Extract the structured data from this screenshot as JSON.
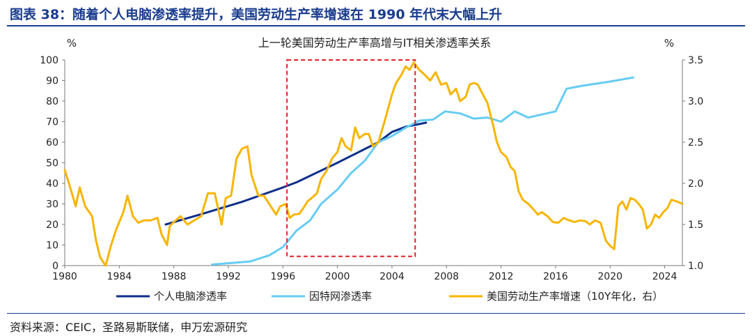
{
  "page": {
    "figure_title": "图表 38：随着个人电脑渗透率提升，美国劳动生产率增速在 1990 年代末大幅上升",
    "source": "资料来源：CEIC，圣路易斯联储，申万宏源研究"
  },
  "chart_data": {
    "type": "line",
    "title": "上一轮美国劳动生产率高增与IT相关渗透率关系",
    "left_unit": "%",
    "right_unit": "%",
    "x_range": [
      1980,
      2025.3
    ],
    "x_ticks": [
      1980,
      1984,
      1988,
      1992,
      1996,
      2000,
      2004,
      2008,
      2012,
      2016,
      2020,
      2024
    ],
    "y_left_range": [
      0,
      100
    ],
    "y_left_ticks": [
      0,
      10,
      20,
      30,
      40,
      50,
      60,
      70,
      80,
      90,
      100
    ],
    "y_right_range": [
      1.0,
      3.5
    ],
    "y_right_ticks": [
      "1.0",
      "1.5",
      "2.0",
      "2.5",
      "3.0",
      "3.5"
    ],
    "highlight_box": {
      "x_from": 1996.3,
      "x_to": 2005.7,
      "y_from": 4.5,
      "y_to": 100
    },
    "series": [
      {
        "name": "个人电脑渗透率",
        "axis": "left",
        "color": "#0d2f8a",
        "points": [
          [
            1987.4,
            20
          ],
          [
            1990,
            25
          ],
          [
            1993,
            31
          ],
          [
            1996,
            38
          ],
          [
            1997,
            40.5
          ],
          [
            2000,
            50
          ],
          [
            2003,
            60
          ],
          [
            2004,
            65
          ],
          [
            2005,
            67.5
          ],
          [
            2006.5,
            69.5
          ]
        ]
      },
      {
        "name": "因特网渗透率",
        "axis": "left",
        "color": "#66ccf2",
        "points": [
          [
            1990.8,
            0.5
          ],
          [
            1993.6,
            2
          ],
          [
            1995,
            5
          ],
          [
            1996,
            9
          ],
          [
            1997,
            17
          ],
          [
            1998,
            22
          ],
          [
            1998.8,
            30
          ],
          [
            2000,
            37
          ],
          [
            2001,
            45
          ],
          [
            2002,
            51
          ],
          [
            2003,
            60
          ],
          [
            2004,
            63
          ],
          [
            2005,
            67
          ],
          [
            2006,
            70.5
          ],
          [
            2007,
            71
          ],
          [
            2007.9,
            75
          ],
          [
            2009,
            74
          ],
          [
            2010,
            71.5
          ],
          [
            2011,
            72
          ],
          [
            2012,
            70
          ],
          [
            2013,
            75
          ],
          [
            2014,
            72
          ],
          [
            2015,
            73.5
          ],
          [
            2016,
            75
          ],
          [
            2016.8,
            86
          ],
          [
            2018,
            87.5
          ],
          [
            2020,
            89.5
          ],
          [
            2021.7,
            91.5
          ]
        ]
      },
      {
        "name": "美国劳动生产率增速（10Y年化，右）",
        "axis": "right",
        "color": "#f7b500",
        "points": [
          [
            1980,
            2.16
          ],
          [
            1980.4,
            1.95
          ],
          [
            1980.8,
            1.72
          ],
          [
            1981.1,
            1.95
          ],
          [
            1981.5,
            1.72
          ],
          [
            1982,
            1.6
          ],
          [
            1982.3,
            1.3
          ],
          [
            1982.6,
            1.1
          ],
          [
            1983,
            1.0
          ],
          [
            1983.4,
            1.25
          ],
          [
            1983.8,
            1.45
          ],
          [
            1984.3,
            1.65
          ],
          [
            1984.6,
            1.85
          ],
          [
            1985,
            1.6
          ],
          [
            1985.4,
            1.52
          ],
          [
            1985.8,
            1.55
          ],
          [
            1986.3,
            1.55
          ],
          [
            1986.8,
            1.58
          ],
          [
            1987.1,
            1.38
          ],
          [
            1987.5,
            1.25
          ],
          [
            1987.7,
            1.48
          ],
          [
            1988,
            1.53
          ],
          [
            1988.5,
            1.6
          ],
          [
            1989,
            1.5
          ],
          [
            1989.5,
            1.55
          ],
          [
            1990,
            1.6
          ],
          [
            1990.5,
            1.88
          ],
          [
            1991,
            1.88
          ],
          [
            1991.5,
            1.5
          ],
          [
            1991.8,
            1.82
          ],
          [
            1992.2,
            1.85
          ],
          [
            1992.6,
            2.3
          ],
          [
            1993,
            2.42
          ],
          [
            1993.4,
            2.45
          ],
          [
            1993.7,
            2.1
          ],
          [
            1994.2,
            1.85
          ],
          [
            1994.6,
            1.85
          ],
          [
            1995,
            1.75
          ],
          [
            1995.5,
            1.62
          ],
          [
            1995.8,
            1.72
          ],
          [
            1996.2,
            1.75
          ],
          [
            1996.5,
            1.58
          ],
          [
            1996.8,
            1.62
          ],
          [
            1997.2,
            1.63
          ],
          [
            1997.5,
            1.7
          ],
          [
            1997.8,
            1.78
          ],
          [
            1998.1,
            1.82
          ],
          [
            1998.5,
            1.88
          ],
          [
            1998.8,
            2.05
          ],
          [
            1999.2,
            2.15
          ],
          [
            1999.6,
            2.3
          ],
          [
            2000,
            2.38
          ],
          [
            2000.3,
            2.55
          ],
          [
            2000.6,
            2.45
          ],
          [
            2001,
            2.4
          ],
          [
            2001.3,
            2.68
          ],
          [
            2001.6,
            2.55
          ],
          [
            2002,
            2.6
          ],
          [
            2002.3,
            2.6
          ],
          [
            2002.6,
            2.45
          ],
          [
            2003,
            2.5
          ],
          [
            2003.4,
            2.72
          ],
          [
            2003.7,
            2.9
          ],
          [
            2004,
            3.08
          ],
          [
            2004.3,
            3.22
          ],
          [
            2004.7,
            3.32
          ],
          [
            2005,
            3.42
          ],
          [
            2005.3,
            3.38
          ],
          [
            2005.6,
            3.47
          ],
          [
            2006,
            3.38
          ],
          [
            2006.4,
            3.32
          ],
          [
            2006.8,
            3.25
          ],
          [
            2007.2,
            3.35
          ],
          [
            2007.6,
            3.2
          ],
          [
            2008,
            3.22
          ],
          [
            2008.3,
            3.08
          ],
          [
            2008.7,
            3.15
          ],
          [
            2009,
            3.0
          ],
          [
            2009.4,
            3.05
          ],
          [
            2009.7,
            3.2
          ],
          [
            2010,
            3.22
          ],
          [
            2010.3,
            3.2
          ],
          [
            2010.7,
            3.07
          ],
          [
            2011,
            2.98
          ],
          [
            2011.4,
            2.72
          ],
          [
            2011.7,
            2.5
          ],
          [
            2012,
            2.38
          ],
          [
            2012.4,
            2.32
          ],
          [
            2012.7,
            2.2
          ],
          [
            2013,
            2.15
          ],
          [
            2013.3,
            1.9
          ],
          [
            2013.6,
            1.8
          ],
          [
            2014,
            1.75
          ],
          [
            2014.4,
            1.68
          ],
          [
            2014.7,
            1.62
          ],
          [
            2015,
            1.65
          ],
          [
            2015.4,
            1.6
          ],
          [
            2015.8,
            1.53
          ],
          [
            2016.2,
            1.52
          ],
          [
            2016.6,
            1.58
          ],
          [
            2017,
            1.55
          ],
          [
            2017.4,
            1.53
          ],
          [
            2017.8,
            1.55
          ],
          [
            2018.2,
            1.54
          ],
          [
            2018.5,
            1.5
          ],
          [
            2018.9,
            1.55
          ],
          [
            2019.3,
            1.52
          ],
          [
            2019.7,
            1.3
          ],
          [
            2020,
            1.24
          ],
          [
            2020.3,
            1.2
          ],
          [
            2020.6,
            1.72
          ],
          [
            2020.9,
            1.78
          ],
          [
            2021.2,
            1.68
          ],
          [
            2021.5,
            1.82
          ],
          [
            2021.8,
            1.8
          ],
          [
            2022.1,
            1.75
          ],
          [
            2022.4,
            1.68
          ],
          [
            2022.7,
            1.45
          ],
          [
            2023,
            1.5
          ],
          [
            2023.3,
            1.62
          ],
          [
            2023.6,
            1.58
          ],
          [
            2023.9,
            1.65
          ],
          [
            2024.2,
            1.7
          ],
          [
            2024.5,
            1.8
          ],
          [
            2024.9,
            1.78
          ],
          [
            2025.3,
            1.75
          ]
        ]
      }
    ],
    "legend": {
      "position": "bottom"
    }
  }
}
